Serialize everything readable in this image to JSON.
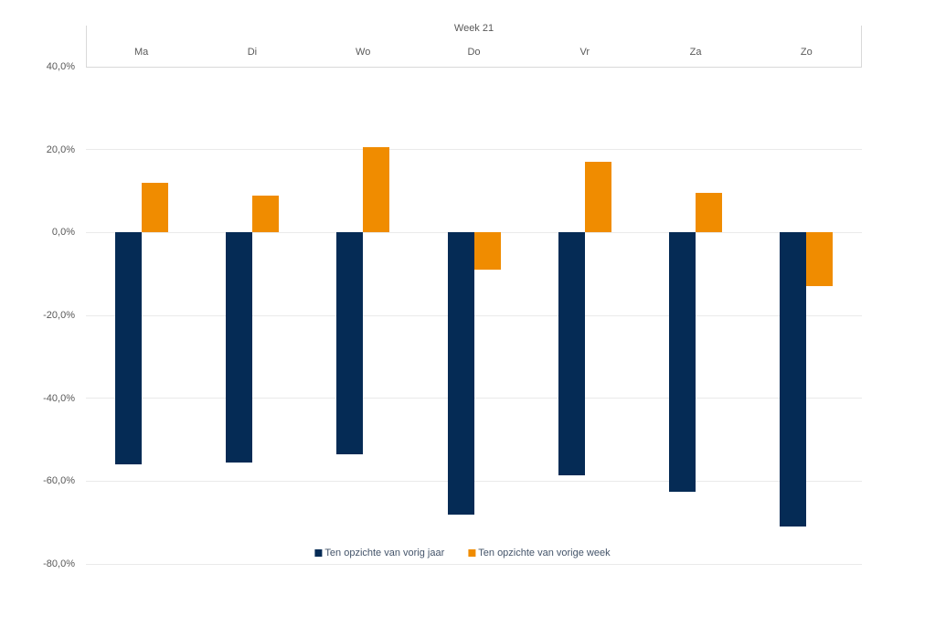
{
  "chart_data": {
    "type": "bar",
    "title": "Week 21",
    "categories": [
      "Ma",
      "Di",
      "Wo",
      "Do",
      "Vr",
      "Za",
      "Zo"
    ],
    "series": [
      {
        "name": "Ten opzichte van vorig jaar",
        "color": "#052B55",
        "values": [
          -56.0,
          -55.5,
          -53.5,
          -68.0,
          -58.5,
          -62.5,
          -71.0
        ]
      },
      {
        "name": "Ten opzichte van vorige week",
        "color": "#F08C00",
        "values": [
          12.0,
          9.0,
          20.5,
          -9.0,
          17.0,
          9.5,
          -13.0
        ]
      }
    ],
    "ylim": [
      -80,
      40
    ],
    "y_ticks": [
      40,
      20,
      0,
      -20,
      -40,
      -60,
      -80
    ],
    "y_tick_labels": [
      "40,0%",
      "20,0%",
      "0,0%",
      "-20,0%",
      "-40,0%",
      "-60,0%",
      "-80,0%"
    ],
    "value_format": "percent-comma-decimal",
    "grid": true,
    "category_axis_position": "top",
    "legend_position": "bottom",
    "colors": {
      "axis_text": "#595959",
      "legend_text": "#44546A",
      "gridline": "#EAEAEA",
      "axis_border": "#D9D9D9",
      "background": "#FFFFFF"
    }
  }
}
